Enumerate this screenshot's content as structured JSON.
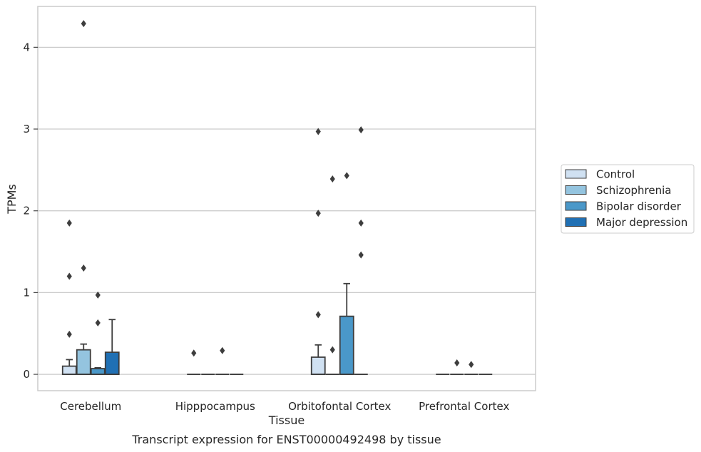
{
  "chart_data": {
    "type": "box",
    "xlabel": "Tissue",
    "ylabel": "TPMs",
    "caption": "Transcript expression for ENST00000492498 by tissue",
    "ylim": [
      -0.2,
      4.5
    ],
    "yticks": [
      "0",
      "1",
      "2",
      "3",
      "4"
    ],
    "grid": true,
    "legend_position": "right",
    "categories": [
      "Cerebellum",
      "Hipppocampus",
      "Orbitofontal Cortex",
      "Prefrontal Cortex"
    ],
    "series": [
      {
        "name": "Control",
        "color": "#d0e1f2",
        "boxes": [
          {
            "q1": 0.0,
            "median": 0.0,
            "q3": 0.1,
            "whisker_low": 0.0,
            "whisker_high": 0.18,
            "outliers": [
              0.49,
              1.2,
              1.85
            ]
          },
          {
            "q1": 0.0,
            "median": 0.0,
            "q3": 0.0,
            "whisker_low": 0.0,
            "whisker_high": 0.0,
            "outliers": [
              0.26
            ]
          },
          {
            "q1": 0.0,
            "median": 0.0,
            "q3": 0.21,
            "whisker_low": 0.0,
            "whisker_high": 0.36,
            "outliers": [
              0.73,
              1.97,
              2.97
            ]
          },
          {
            "q1": 0.0,
            "median": 0.0,
            "q3": 0.0,
            "whisker_low": 0.0,
            "whisker_high": 0.0,
            "outliers": []
          }
        ]
      },
      {
        "name": "Schizophrenia",
        "color": "#94c4df",
        "boxes": [
          {
            "q1": 0.0,
            "median": 0.0,
            "q3": 0.3,
            "whisker_low": 0.0,
            "whisker_high": 0.37,
            "outliers": [
              1.3,
              4.29
            ]
          },
          {
            "q1": 0.0,
            "median": 0.0,
            "q3": 0.0,
            "whisker_low": 0.0,
            "whisker_high": 0.0,
            "outliers": []
          },
          {
            "q1": 0.0,
            "median": 0.0,
            "q3": 0.0,
            "whisker_low": 0.0,
            "whisker_high": 0.0,
            "outliers": [
              0.3,
              2.39
            ]
          },
          {
            "q1": 0.0,
            "median": 0.0,
            "q3": 0.0,
            "whisker_low": 0.0,
            "whisker_high": 0.0,
            "outliers": [
              0.14
            ]
          }
        ]
      },
      {
        "name": "Bipolar disorder",
        "color": "#4a98c9",
        "boxes": [
          {
            "q1": 0.0,
            "median": 0.0,
            "q3": 0.07,
            "whisker_low": 0.0,
            "whisker_high": 0.08,
            "outliers": [
              0.63,
              0.97
            ]
          },
          {
            "q1": 0.0,
            "median": 0.0,
            "q3": 0.0,
            "whisker_low": 0.0,
            "whisker_high": 0.0,
            "outliers": [
              0.29
            ]
          },
          {
            "q1": 0.0,
            "median": 0.0,
            "q3": 0.71,
            "whisker_low": 0.0,
            "whisker_high": 1.11,
            "outliers": [
              2.43
            ]
          },
          {
            "q1": 0.0,
            "median": 0.0,
            "q3": 0.0,
            "whisker_low": 0.0,
            "whisker_high": 0.0,
            "outliers": [
              0.12
            ]
          }
        ]
      },
      {
        "name": "Major depression",
        "color": "#2070b4",
        "boxes": [
          {
            "q1": 0.0,
            "median": 0.0,
            "q3": 0.27,
            "whisker_low": 0.0,
            "whisker_high": 0.67,
            "outliers": []
          },
          {
            "q1": 0.0,
            "median": 0.0,
            "q3": 0.0,
            "whisker_low": 0.0,
            "whisker_high": 0.0,
            "outliers": []
          },
          {
            "q1": 0.0,
            "median": 0.0,
            "q3": 0.0,
            "whisker_low": 0.0,
            "whisker_high": 0.0,
            "outliers": [
              1.46,
              1.85,
              2.99
            ]
          },
          {
            "q1": 0.0,
            "median": 0.0,
            "q3": 0.0,
            "whisker_low": 0.0,
            "whisker_high": 0.0,
            "outliers": []
          }
        ]
      }
    ]
  }
}
